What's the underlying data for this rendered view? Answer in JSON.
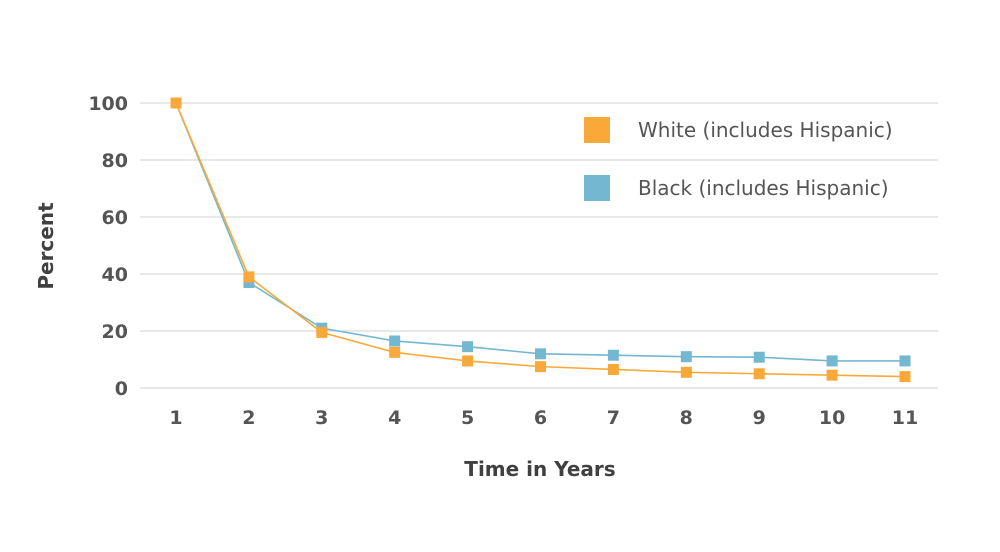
{
  "chart_data": {
    "type": "line",
    "x": [
      1,
      2,
      3,
      4,
      5,
      6,
      7,
      8,
      9,
      10,
      11
    ],
    "xlabel": "Time in Years",
    "ylabel": "Percent",
    "ylim": [
      0,
      100
    ],
    "yticks": [
      0,
      20,
      40,
      60,
      80,
      100
    ],
    "grid": true,
    "legend_position": "top-right",
    "series": [
      {
        "name": "White (includes Hispanic)",
        "color": "#f9a93a",
        "values": [
          100,
          39,
          19.5,
          12.5,
          9.5,
          7.5,
          6.5,
          5.5,
          5,
          4.5,
          4
        ]
      },
      {
        "name": "Black (includes Hispanic)",
        "color": "#73b8d0",
        "values": [
          100,
          37,
          21,
          16.5,
          14.5,
          12,
          11.5,
          11,
          10.8,
          9.5,
          9.5
        ]
      }
    ]
  }
}
